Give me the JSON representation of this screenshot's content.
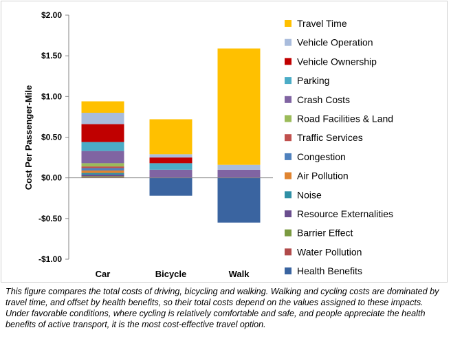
{
  "chart_data": {
    "type": "bar",
    "stacked": true,
    "categories": [
      "Car",
      "Bicycle",
      "Walk"
    ],
    "ylabel": "Cost Per Passenger-Mile",
    "ylim": [
      -1.0,
      2.0
    ],
    "yticks": [
      -1.0,
      -0.5,
      0.0,
      0.5,
      1.0,
      1.5,
      2.0
    ],
    "ytick_labels": [
      "-$1.00",
      "-$0.50",
      "$0.00",
      "$0.50",
      "$1.00",
      "$1.50",
      "$2.00"
    ],
    "grid": false,
    "legend_position": "right",
    "series": [
      {
        "name": "Health Benefits",
        "color": "#3A64A0",
        "values": [
          0,
          -0.22,
          -0.55
        ]
      },
      {
        "name": "Water Pollution",
        "color": "#B04A4A",
        "values": [
          0.01,
          0,
          0
        ]
      },
      {
        "name": "Barrier Effect",
        "color": "#7A9A40",
        "values": [
          0.01,
          0,
          0
        ]
      },
      {
        "name": "Resource Externalities",
        "color": "#6A4E8E",
        "values": [
          0.02,
          0,
          0
        ]
      },
      {
        "name": "Noise",
        "color": "#2F8FA5",
        "values": [
          0.02,
          0,
          0
        ]
      },
      {
        "name": "Air Pollution",
        "color": "#E08430",
        "values": [
          0.03,
          0,
          0
        ]
      },
      {
        "name": "Congestion",
        "color": "#4F81BD",
        "values": [
          0.03,
          0,
          0
        ]
      },
      {
        "name": "Traffic Services",
        "color": "#C0504D",
        "values": [
          0.02,
          0,
          0
        ]
      },
      {
        "name": "Road Facilities & Land",
        "color": "#9BBB59",
        "values": [
          0.04,
          0,
          0
        ]
      },
      {
        "name": "Crash Costs",
        "color": "#8064A2",
        "values": [
          0.15,
          0.1,
          0.1
        ]
      },
      {
        "name": "Parking",
        "color": "#4BACC6",
        "values": [
          0.11,
          0.08,
          0
        ]
      },
      {
        "name": "Vehicle Ownership",
        "color": "#C00000",
        "values": [
          0.22,
          0.07,
          0
        ]
      },
      {
        "name": "Vehicle Operation",
        "color": "#A9BCDC",
        "values": [
          0.14,
          0.04,
          0.06
        ]
      },
      {
        "name": "Travel Time",
        "color": "#FFC000",
        "values": [
          0.14,
          0.43,
          1.43
        ]
      }
    ]
  },
  "caption": "This figure compares the total costs of driving, bicycling and walking. Walking and cycling costs are dominated by travel time, and offset by health benefits, so their total costs depend on the values assigned to these impacts. Under favorable conditions, where cycling is relatively comfortable and safe, and people appreciate the health benefits of active transport, it is the most cost-effective travel option."
}
